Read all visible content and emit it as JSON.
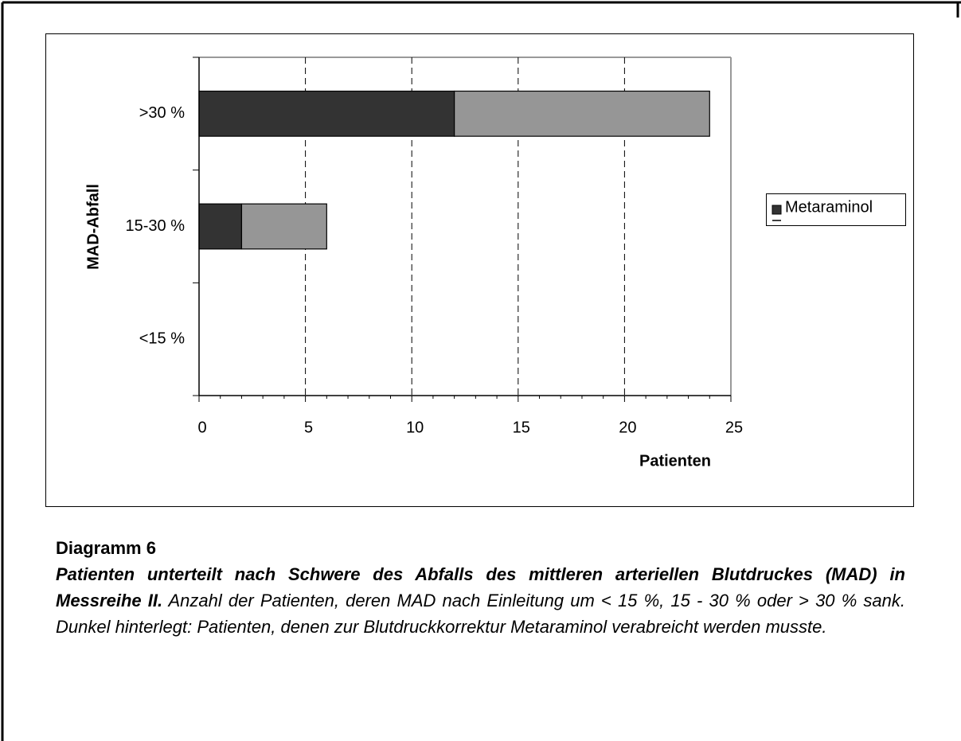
{
  "chart_data": {
    "type": "stacked-barh",
    "xlabel": "Patienten",
    "ylabel": "MAD-Abfall",
    "categories": [
      "<15 %",
      "15-30 %",
      ">30 %"
    ],
    "series": [
      {
        "name": "Metaraminol",
        "color": "#333333",
        "values": [
          0,
          2,
          12
        ]
      },
      {
        "color": "#969696",
        "values": [
          0,
          4,
          12
        ]
      }
    ],
    "xlim": [
      0,
      25
    ],
    "xticks": [
      0,
      5,
      10,
      15,
      20,
      25
    ],
    "grid": true,
    "legend": "right"
  },
  "caption": {
    "label": "Diagramm 6",
    "title": "Patienten unterteilt nach Schwere des Abfalls des mittleren arteriellen Blutdruckes (MAD) in Messreihe II.",
    "text": "Anzahl der Patienten, deren MAD nach Einleitung um < 15 %, 15 - 30 % oder > 30 % sank. Dunkel hinterlegt: Patienten, denen zur Blutdruckkorrektur Metaraminol verabreicht werden musste."
  }
}
